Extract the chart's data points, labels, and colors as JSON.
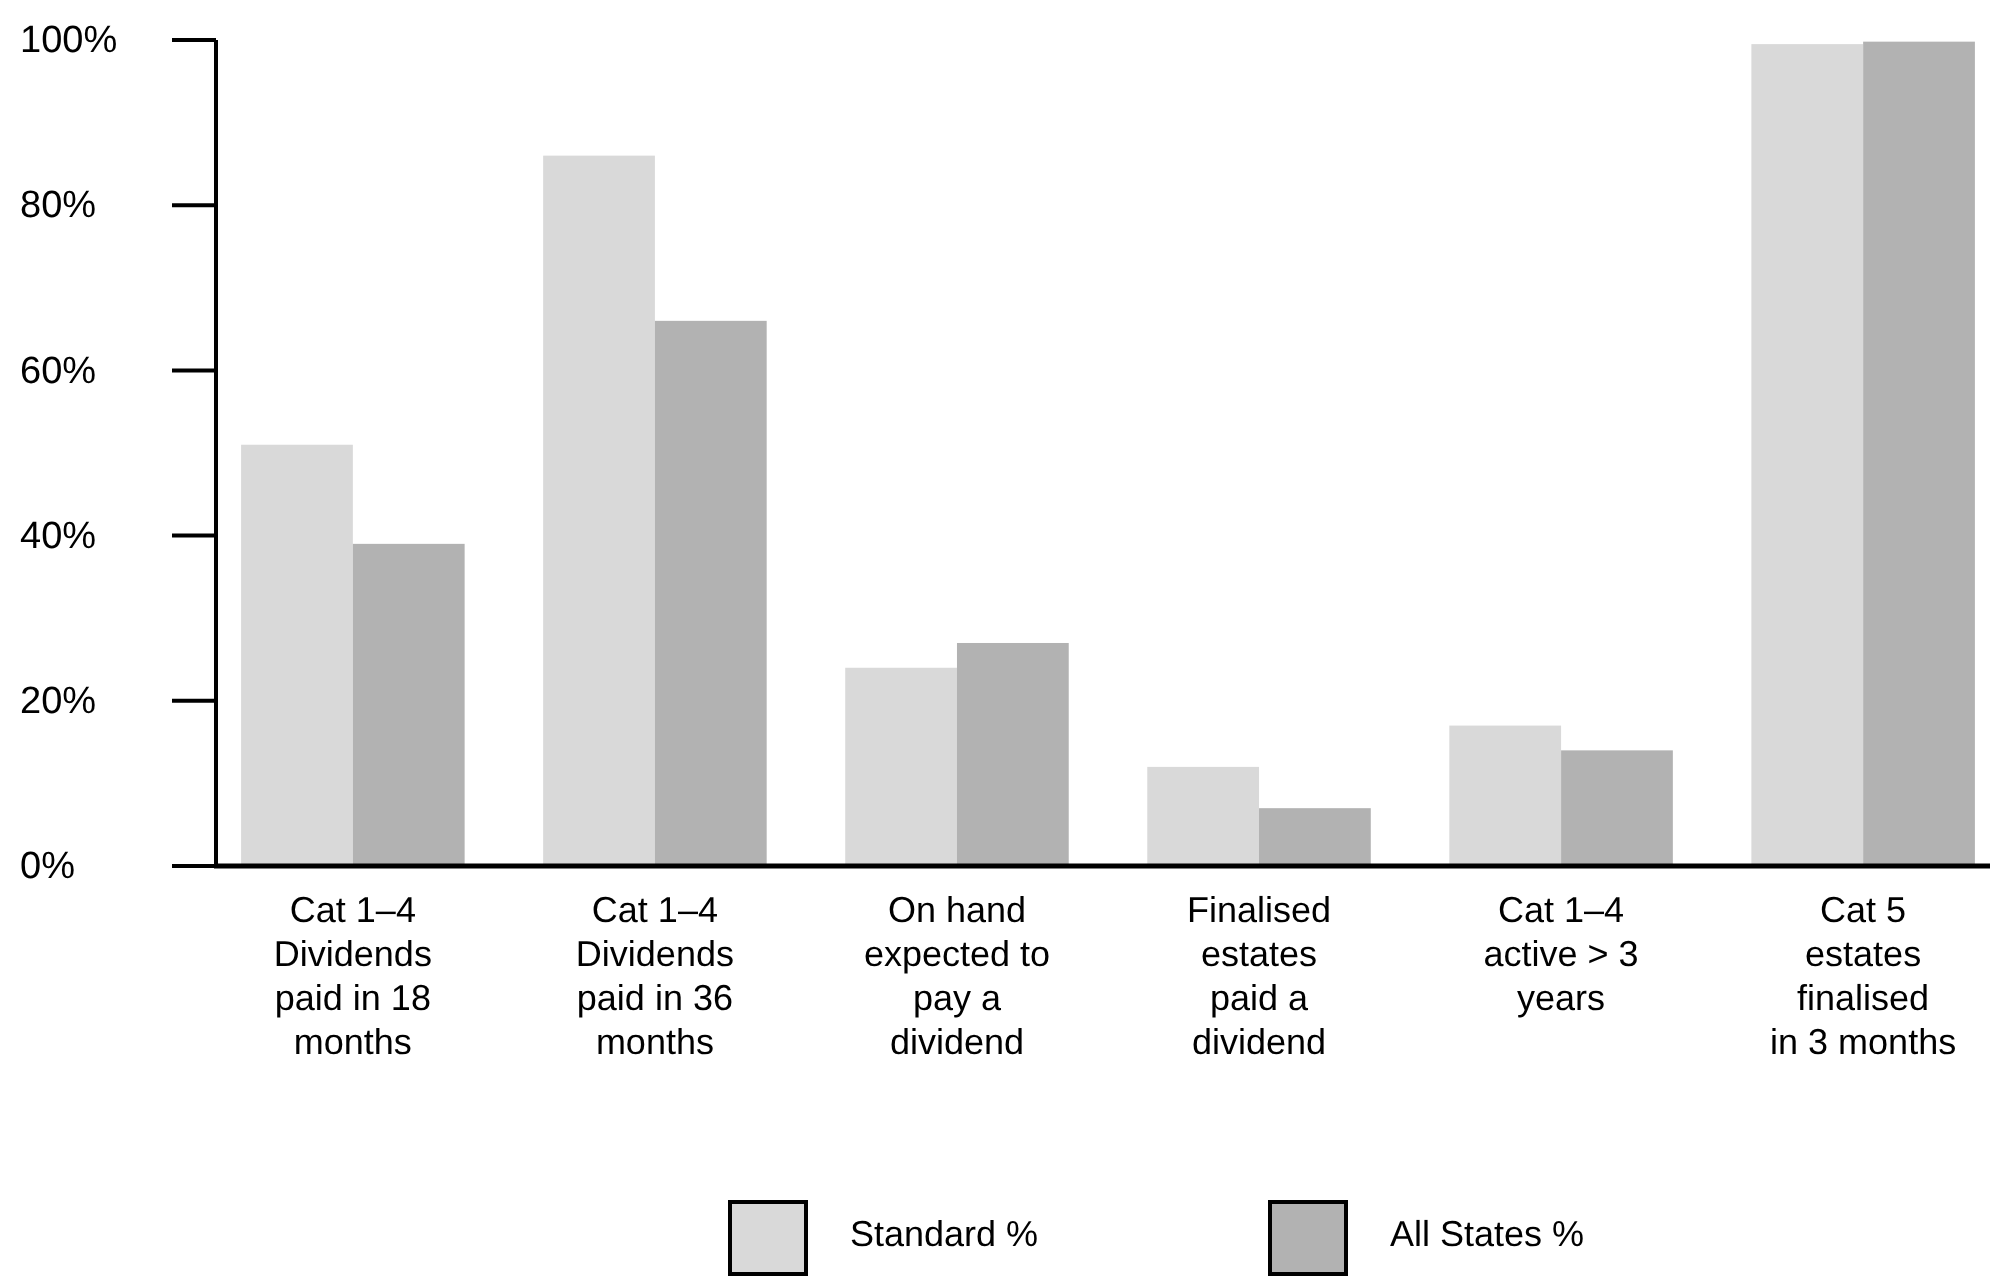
{
  "chart_data": {
    "type": "bar",
    "categories": [
      "Cat 1–4 Dividends paid in 18 months",
      "Cat 1–4 Dividends paid in 36 months",
      "On hand expected to pay a dividend",
      "Finalised estates paid a dividend",
      "Cat 1–4 active > 3 years",
      "Cat 5 estates finalised in 3 months"
    ],
    "series": [
      {
        "name": "Standard %",
        "color": "#d9d9d9",
        "values": [
          51,
          86,
          24,
          12,
          17,
          99.5
        ]
      },
      {
        "name": "All States %",
        "color": "#b2b2b2",
        "values": [
          39,
          66,
          27,
          7,
          14,
          99.8
        ]
      }
    ],
    "ylim": [
      0,
      100
    ],
    "yticks": [
      {
        "value": 0,
        "label": "0%"
      },
      {
        "value": 20,
        "label": "20%"
      },
      {
        "value": 40,
        "label": "40%"
      },
      {
        "value": 60,
        "label": "60%"
      },
      {
        "value": 80,
        "label": "80%"
      },
      {
        "value": 100,
        "label": "100%"
      }
    ],
    "grid": false,
    "legend": "bottom"
  }
}
